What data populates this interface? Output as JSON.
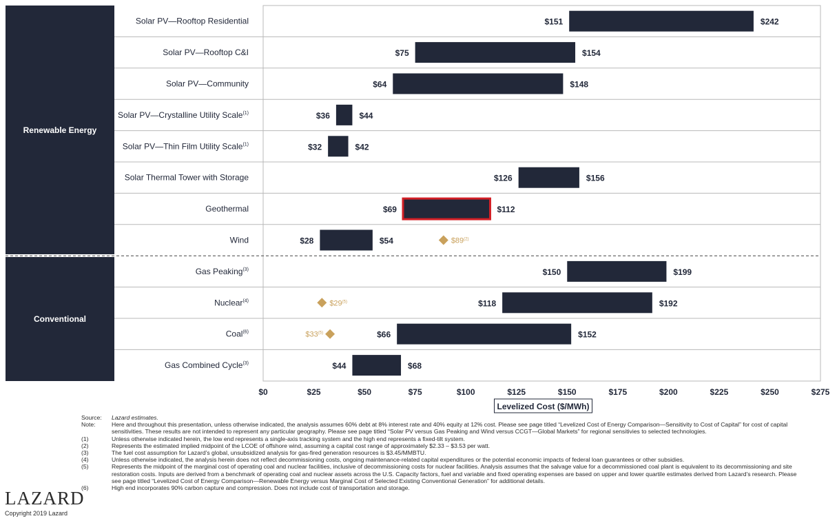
{
  "chart_data": {
    "type": "bar",
    "subtype": "floating-range-horizontal",
    "xlabel": "Levelized Cost ($/MWh)",
    "xlim": [
      0,
      275
    ],
    "xticks": [
      0,
      25,
      50,
      75,
      100,
      125,
      150,
      175,
      200,
      225,
      250,
      275
    ],
    "xtick_labels": [
      "$0",
      "$25",
      "$50",
      "$75",
      "$100",
      "$125",
      "$150",
      "$175",
      "$200",
      "$225",
      "$250",
      "$275"
    ],
    "groups": [
      {
        "name": "Renewable Energy",
        "rows": [
          0,
          7
        ]
      },
      {
        "name": "Conventional",
        "rows": [
          8,
          11
        ]
      }
    ],
    "rows": [
      {
        "category": "Solar PV—Rooftop Residential",
        "sup": "",
        "low": 151,
        "high": 242,
        "low_label": "$151",
        "high_label": "$242"
      },
      {
        "category": "Solar PV—Rooftop C&I",
        "sup": "",
        "low": 75,
        "high": 154,
        "low_label": "$75",
        "high_label": "$154"
      },
      {
        "category": "Solar PV—Community",
        "sup": "",
        "low": 64,
        "high": 148,
        "low_label": "$64",
        "high_label": "$148"
      },
      {
        "category": "Solar PV—Crystalline Utility Scale",
        "sup": "(1)",
        "low": 36,
        "high": 44,
        "low_label": "$36",
        "high_label": "$44"
      },
      {
        "category": "Solar PV—Thin Film Utility Scale",
        "sup": "(1)",
        "low": 32,
        "high": 42,
        "low_label": "$32",
        "high_label": "$42"
      },
      {
        "category": "Solar Thermal Tower with Storage",
        "sup": "",
        "low": 126,
        "high": 156,
        "low_label": "$126",
        "high_label": "$156"
      },
      {
        "category": "Geothermal",
        "sup": "",
        "low": 69,
        "high": 112,
        "low_label": "$69",
        "high_label": "$112",
        "highlight": true
      },
      {
        "category": "Wind",
        "sup": "",
        "low": 28,
        "high": 54,
        "low_label": "$28",
        "high_label": "$54",
        "marker": {
          "value": 89,
          "label": "$89",
          "sup": "(2)",
          "label_side": "right"
        }
      },
      {
        "category": "Gas Peaking",
        "sup": "(3)",
        "low": 150,
        "high": 199,
        "low_label": "$150",
        "high_label": "$199"
      },
      {
        "category": "Nuclear",
        "sup": "(4)",
        "low": 118,
        "high": 192,
        "low_label": "$118",
        "high_label": "$192",
        "marker": {
          "value": 29,
          "label": "$29",
          "sup": "(5)",
          "label_side": "right"
        }
      },
      {
        "category": "Coal",
        "sup": "(6)",
        "low": 66,
        "high": 152,
        "low_label": "$66",
        "high_label": "$152",
        "marker": {
          "value": 33,
          "label": "$33",
          "sup": "(5)",
          "label_side": "left"
        }
      },
      {
        "category": "Gas Combined Cycle",
        "sup": "(3)",
        "low": 44,
        "high": 68,
        "low_label": "$44",
        "high_label": "$68"
      }
    ],
    "colors": {
      "bar": "#222839",
      "highlight": "#d21f26",
      "marker": "#c9a15c",
      "grid": "#b8b8b8",
      "divider": "#444444"
    }
  },
  "footnotes": {
    "source_key": "Source:",
    "source_text": "Lazard estimates.",
    "note_key": "Note:",
    "note_text": "Here and throughout this presentation, unless otherwise indicated, the analysis assumes 60% debt at 8% interest rate and 40% equity at 12% cost. Please see page titled “Levelized Cost of Energy Comparison—Sensitivity to Cost of Capital” for cost of capital sensitivities. These results are not intended to represent any particular geography. Please see page titled “Solar PV versus Gas Peaking and Wind versus CCGT—Global Markets” for regional sensitivies to selected technologies.",
    "items": [
      {
        "key": "(1)",
        "text": "Unless otherwise indicated herein, the low end represents a single-axis tracking system and the high end represents a fixed-tilt system."
      },
      {
        "key": "(2)",
        "text": "Represents the estimated implied midpoint of the LCOE of offshore wind, assuming a capital cost range of approximately $2.33 – $3.53 per watt."
      },
      {
        "key": "(3)",
        "text": "The fuel cost assumption for Lazard’s global, unsubsidized analysis for gas-fired generation resources is $3.45/MMBTU."
      },
      {
        "key": "(4)",
        "text": "Unless otherwise indicated, the analysis herein does not reflect decommissioning costs, ongoing maintenance-related capital expenditures or the potential economic impacts of federal loan guarantees or other subsidies."
      },
      {
        "key": "(5)",
        "text": "Represents the midpoint of the marginal cost of operating coal and nuclear facilities, inclusive of decommissioning costs for nuclear facilities. Analysis assumes that the salvage value for a decommissioned coal plant is equivalent to its decommissioning and site restoration costs. Inputs are derived from a benchmark of operating coal and nuclear assets across the U.S. Capacity factors, fuel and variable and fixed operating expenses are based on upper and lower quartile estimates derived from Lazard’s research. Please see page titled “Levelized Cost of Energy Comparison—Renewable Energy versus Marginal Cost of Selected Existing Conventional Generation” for additional details."
      },
      {
        "key": "(6)",
        "text": "High end incorporates 90% carbon capture and compression. Does not include cost of transportation and storage."
      }
    ]
  },
  "branding": {
    "logo": "LAZARD",
    "copyright": "Copyright 2019 Lazard"
  }
}
